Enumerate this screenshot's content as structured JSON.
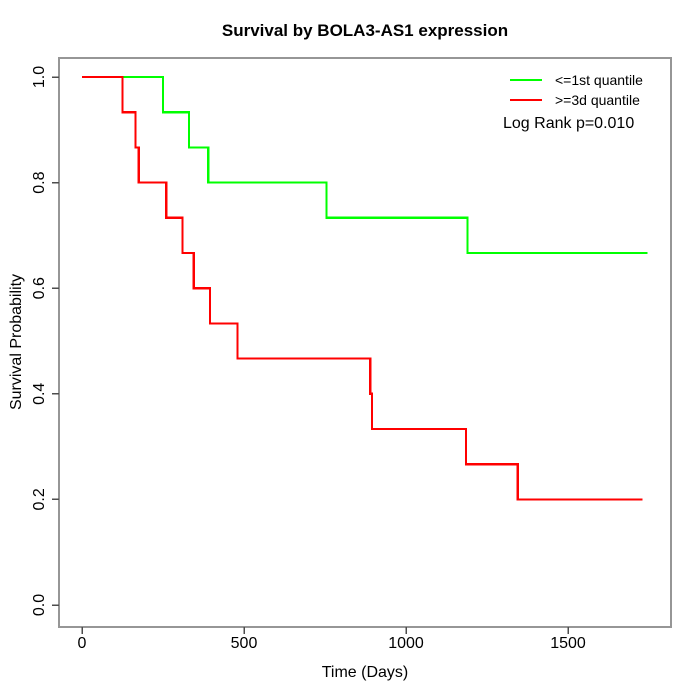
{
  "page": {
    "background_color": "#ffffff"
  },
  "chart_data": {
    "type": "line",
    "subtype": "kaplan_meier_step",
    "title": "Survival by BOLA3-AS1 expression",
    "xlabel": "Time (Days)",
    "ylabel": "Survival Probability",
    "xlim": [
      0,
      1750
    ],
    "ylim": [
      0,
      1
    ],
    "x_ticks": [
      0,
      500,
      1000,
      1500
    ],
    "y_ticks": [
      0.0,
      0.2,
      0.4,
      0.6,
      0.8,
      1.0
    ],
    "y_tick_labels": [
      "0.0",
      "0.2",
      "0.4",
      "0.6",
      "0.8",
      "1.0"
    ],
    "grid": false,
    "legend_position": "top-right",
    "axis_color": "#969696",
    "tick_color": "#4d4d4d",
    "text_color": "#000000",
    "annotation": "Log Rank p=0.010",
    "series": [
      {
        "key": "le-1st-quantile",
        "name": "<=1st quantile",
        "color": "#00ff00",
        "end_time": 1745,
        "points": [
          [
            0,
            1.0
          ],
          [
            250,
            0.9333
          ],
          [
            330,
            0.8667
          ],
          [
            390,
            0.8
          ],
          [
            755,
            0.7333
          ],
          [
            1190,
            0.6667
          ]
        ]
      },
      {
        "key": "ge-3d-quantile",
        "name": ">=3d quantile",
        "color": "#ff0000",
        "end_time": 1730,
        "points": [
          [
            0,
            1.0
          ],
          [
            125,
            0.9333
          ],
          [
            165,
            0.8667
          ],
          [
            175,
            0.8
          ],
          [
            260,
            0.7333
          ],
          [
            310,
            0.6667
          ],
          [
            345,
            0.6
          ],
          [
            395,
            0.5333
          ],
          [
            480,
            0.4667
          ],
          [
            890,
            0.4
          ],
          [
            895,
            0.3333
          ],
          [
            1185,
            0.2667
          ],
          [
            1345,
            0.2
          ]
        ]
      }
    ]
  }
}
